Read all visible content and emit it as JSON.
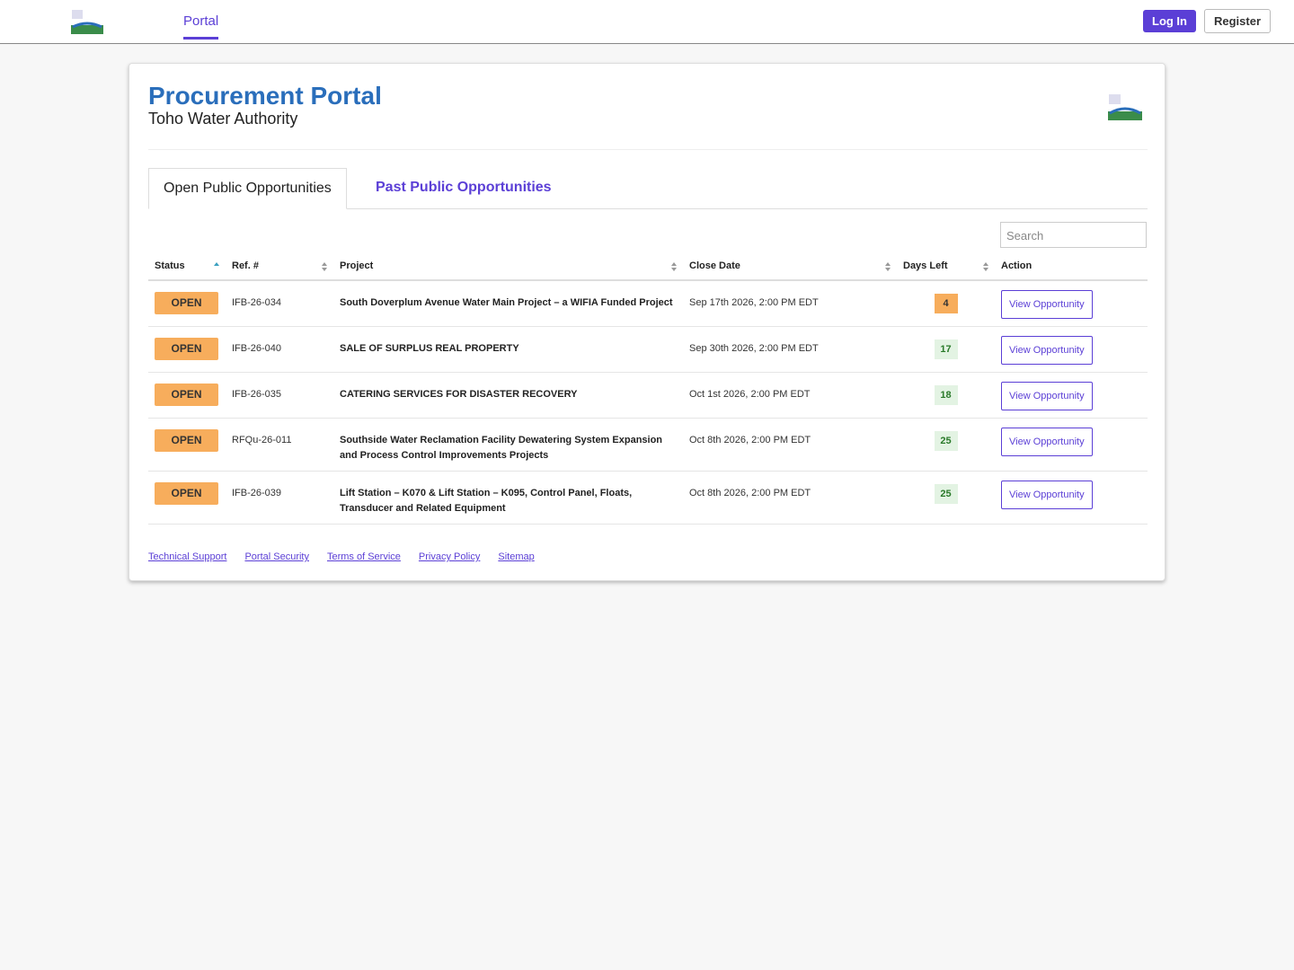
{
  "nav": {
    "portal": "Portal",
    "login": "Log In",
    "register": "Register"
  },
  "header": {
    "title": "Procurement Portal",
    "subtitle": "Toho Water Authority"
  },
  "tabs": [
    "Open Public Opportunities",
    "Past Public Opportunities"
  ],
  "search_placeholder": "Search",
  "table": {
    "columns": [
      "Status",
      "Ref. #",
      "Project",
      "Close Date",
      "Days Left",
      "Action"
    ],
    "rows": [
      [
        "OPEN",
        "IFB-26-034",
        "South Doverplum Avenue Water Main Project – a WIFIA Funded Project",
        "Sep 17th 2026, 2:00 PM EDT",
        4,
        "View Opportunity"
      ],
      [
        "OPEN",
        "IFB-26-040",
        "SALE OF SURPLUS REAL PROPERTY",
        "Sep 30th 2026, 2:00 PM EDT",
        17,
        "View Opportunity"
      ],
      [
        "OPEN",
        "IFB-26-035",
        "CATERING SERVICES FOR DISASTER RECOVERY",
        "Oct 1st 2026, 2:00 PM EDT",
        18,
        "View Opportunity"
      ],
      [
        "OPEN",
        "RFQu-26-011",
        "Southside Water Reclamation Facility Dewatering System Expansion and Process Control Improvements Projects",
        "Oct 8th 2026, 2:00 PM EDT",
        25,
        "View Opportunity"
      ],
      [
        "OPEN",
        "IFB-26-039",
        "Lift Station – K070 & Lift Station – K095, Control Panel, Floats, Transducer and Related Equipment",
        "Oct 8th 2026, 2:00 PM EDT",
        25,
        "View Opportunity"
      ]
    ]
  },
  "footer_links": [
    "Technical Support",
    "Portal Security",
    "Terms of Service",
    "Privacy Policy",
    "Sitemap"
  ]
}
